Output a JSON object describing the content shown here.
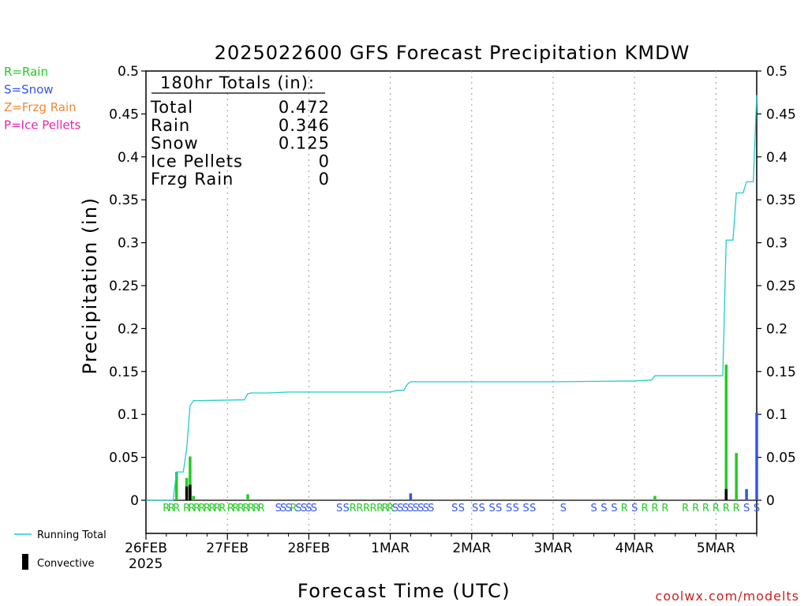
{
  "chart_data": {
    "type": "bar",
    "title": "2025022600 GFS Forecast Precipitation KMDW",
    "ylabel": "Precipitation (in)",
    "xlabel": "Forecast Time (UTC)",
    "ylim": [
      0,
      0.5
    ],
    "xlim_hours": [
      0,
      180
    ],
    "y_ticks": [
      "0",
      "0.05",
      "0.1",
      "0.15",
      "0.2",
      "0.25",
      "0.3",
      "0.35",
      "0.4",
      "0.45",
      "0.5"
    ],
    "x_ticks": [
      {
        "hour": 0,
        "label": "26FEB"
      },
      {
        "hour": 24,
        "label": "27FEB"
      },
      {
        "hour": 48,
        "label": "28FEB"
      },
      {
        "hour": 72,
        "label": "1MAR"
      },
      {
        "hour": 96,
        "label": "2MAR"
      },
      {
        "hour": 120,
        "label": "3MAR"
      },
      {
        "hour": 144,
        "label": "4MAR"
      },
      {
        "hour": 168,
        "label": "5MAR"
      }
    ],
    "year_label": "2025",
    "grid": "vertical-dotted",
    "type_legend": [
      {
        "code": "R",
        "text": "R=Rain",
        "color": "#22cc22"
      },
      {
        "code": "S",
        "text": "S=Snow",
        "color": "#3355ee"
      },
      {
        "code": "Z",
        "text": "Z=Frzg Rain",
        "color": "#ee8833"
      },
      {
        "code": "P",
        "text": "P=Ice Pellets",
        "color": "#ee22aa"
      }
    ],
    "series_legend": {
      "running_total": "Running Total",
      "convective": "Convective"
    },
    "colors": {
      "rain": "#22cc22",
      "snow": "#3355ee",
      "convective": "#000000",
      "running_total": "#22cccc"
    },
    "totals_box": {
      "title": "180hr Totals (in):",
      "rows": [
        {
          "label": "Total",
          "value": "0.472"
        },
        {
          "label": "Rain",
          "value": "0.346"
        },
        {
          "label": "Snow",
          "value": "0.125"
        },
        {
          "label": "Ice Pellets",
          "value": "0"
        },
        {
          "label": "Frzg Rain",
          "value": "0"
        }
      ]
    },
    "bars": [
      {
        "hour": 9,
        "value": 0.033,
        "type": "R",
        "convective": 0.0
      },
      {
        "hour": 12,
        "value": 0.026,
        "type": "R",
        "convective": 0.016
      },
      {
        "hour": 13,
        "value": 0.051,
        "type": "R",
        "convective": 0.018
      },
      {
        "hour": 14,
        "value": 0.005,
        "type": "R",
        "convective": 0.0
      },
      {
        "hour": 30,
        "value": 0.007,
        "type": "R",
        "convective": 0.0
      },
      {
        "hour": 78,
        "value": 0.008,
        "type": "S",
        "convective": 0.0
      },
      {
        "hour": 150,
        "value": 0.005,
        "type": "R",
        "convective": 0.0
      },
      {
        "hour": 171,
        "value": 0.158,
        "type": "R",
        "convective": 0.013
      },
      {
        "hour": 174,
        "value": 0.055,
        "type": "R",
        "convective": 0.0
      },
      {
        "hour": 177,
        "value": 0.013,
        "type": "S",
        "convective": 0.0
      },
      {
        "hour": 180,
        "value": 0.102,
        "type": "S",
        "convective": 0.0
      }
    ],
    "running_total": [
      [
        0,
        0
      ],
      [
        8,
        0
      ],
      [
        9,
        0.033
      ],
      [
        11,
        0.033
      ],
      [
        12,
        0.06
      ],
      [
        13,
        0.11
      ],
      [
        14,
        0.116
      ],
      [
        29,
        0.117
      ],
      [
        30,
        0.124
      ],
      [
        31,
        0.125
      ],
      [
        36,
        0.125
      ],
      [
        42,
        0.126
      ],
      [
        72,
        0.126
      ],
      [
        74,
        0.128
      ],
      [
        76,
        0.128
      ],
      [
        77,
        0.135
      ],
      [
        78,
        0.138
      ],
      [
        100,
        0.138
      ],
      [
        120,
        0.138
      ],
      [
        144,
        0.139
      ],
      [
        149,
        0.14
      ],
      [
        150,
        0.145
      ],
      [
        170,
        0.145
      ],
      [
        171,
        0.303
      ],
      [
        173,
        0.303
      ],
      [
        174,
        0.358
      ],
      [
        176,
        0.358
      ],
      [
        177,
        0.371
      ],
      [
        179,
        0.371
      ],
      [
        180,
        0.472
      ]
    ],
    "ptype_strip": [
      {
        "hour": 6,
        "type": "R"
      },
      {
        "hour": 7.5,
        "type": "R"
      },
      {
        "hour": 9,
        "type": "R"
      },
      {
        "hour": 12,
        "type": "R"
      },
      {
        "hour": 13.5,
        "type": "R"
      },
      {
        "hour": 15,
        "type": "R"
      },
      {
        "hour": 16.5,
        "type": "R"
      },
      {
        "hour": 18,
        "type": "R"
      },
      {
        "hour": 19.5,
        "type": "R"
      },
      {
        "hour": 21,
        "type": "R"
      },
      {
        "hour": 22.5,
        "type": "R"
      },
      {
        "hour": 25,
        "type": "R"
      },
      {
        "hour": 26.5,
        "type": "R"
      },
      {
        "hour": 28,
        "type": "R"
      },
      {
        "hour": 29.5,
        "type": "R"
      },
      {
        "hour": 31,
        "type": "R"
      },
      {
        "hour": 32.5,
        "type": "R"
      },
      {
        "hour": 34,
        "type": "R"
      },
      {
        "hour": 39,
        "type": "S"
      },
      {
        "hour": 40.5,
        "type": "S"
      },
      {
        "hour": 42,
        "type": "S"
      },
      {
        "hour": 43.5,
        "type": "R"
      },
      {
        "hour": 45,
        "type": "S"
      },
      {
        "hour": 46.5,
        "type": "S"
      },
      {
        "hour": 48,
        "type": "S"
      },
      {
        "hour": 49.5,
        "type": "S"
      },
      {
        "hour": 57,
        "type": "S"
      },
      {
        "hour": 59,
        "type": "S"
      },
      {
        "hour": 61,
        "type": "R"
      },
      {
        "hour": 63,
        "type": "R"
      },
      {
        "hour": 65,
        "type": "R"
      },
      {
        "hour": 67,
        "type": "R"
      },
      {
        "hour": 69,
        "type": "R"
      },
      {
        "hour": 70.5,
        "type": "R"
      },
      {
        "hour": 72,
        "type": "R"
      },
      {
        "hour": 73.5,
        "type": "S"
      },
      {
        "hour": 75,
        "type": "S"
      },
      {
        "hour": 76.5,
        "type": "S"
      },
      {
        "hour": 78,
        "type": "S"
      },
      {
        "hour": 79.5,
        "type": "S"
      },
      {
        "hour": 81,
        "type": "S"
      },
      {
        "hour": 82.5,
        "type": "S"
      },
      {
        "hour": 84,
        "type": "S"
      },
      {
        "hour": 91,
        "type": "S"
      },
      {
        "hour": 93,
        "type": "S"
      },
      {
        "hour": 97,
        "type": "S"
      },
      {
        "hour": 99,
        "type": "S"
      },
      {
        "hour": 102,
        "type": "S"
      },
      {
        "hour": 104,
        "type": "S"
      },
      {
        "hour": 107,
        "type": "S"
      },
      {
        "hour": 109,
        "type": "S"
      },
      {
        "hour": 112,
        "type": "S"
      },
      {
        "hour": 114,
        "type": "S"
      },
      {
        "hour": 123,
        "type": "S"
      },
      {
        "hour": 132,
        "type": "S"
      },
      {
        "hour": 135,
        "type": "S"
      },
      {
        "hour": 138,
        "type": "S"
      },
      {
        "hour": 141,
        "type": "R"
      },
      {
        "hour": 144,
        "type": "S"
      },
      {
        "hour": 147,
        "type": "R"
      },
      {
        "hour": 150,
        "type": "R"
      },
      {
        "hour": 153,
        "type": "R"
      },
      {
        "hour": 159,
        "type": "R"
      },
      {
        "hour": 162,
        "type": "R"
      },
      {
        "hour": 165,
        "type": "R"
      },
      {
        "hour": 168,
        "type": "R"
      },
      {
        "hour": 171,
        "type": "R"
      },
      {
        "hour": 174,
        "type": "R"
      },
      {
        "hour": 177,
        "type": "S"
      },
      {
        "hour": 180,
        "type": "S"
      }
    ]
  },
  "credit": "coolwx.com/modelts"
}
